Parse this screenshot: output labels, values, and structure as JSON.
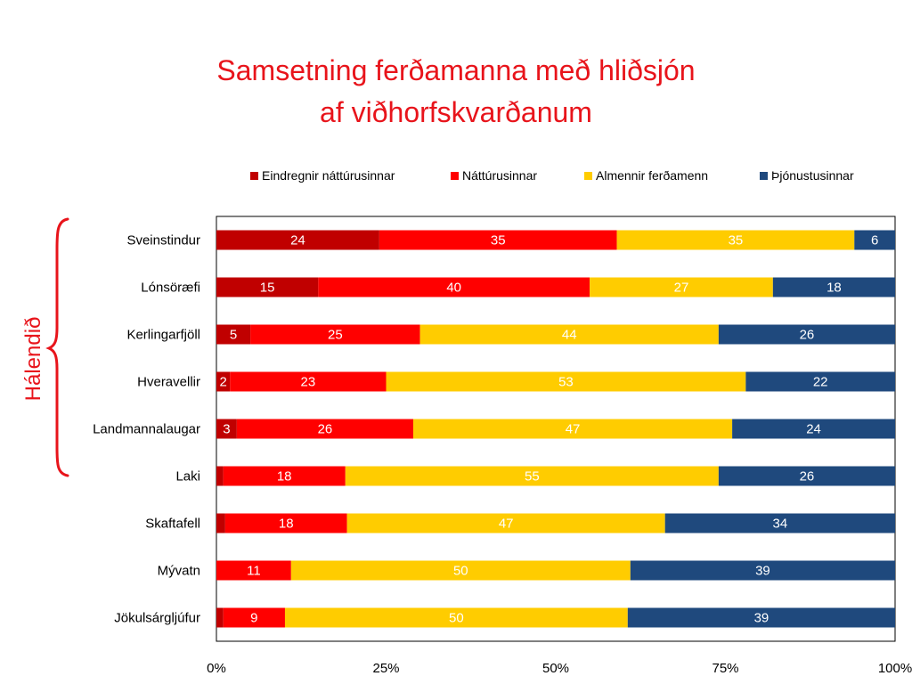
{
  "title_lines": [
    "Samsetning ferðamanna með hliðsjón",
    "af  viðhorfskvarðanum"
  ],
  "bracket_label": "Hálendið",
  "chart_data": {
    "type": "bar",
    "orientation": "horizontal",
    "stacking": "percent",
    "title": "Samsetning ferðamanna með hliðsjón af  viðhorfskvarðanum",
    "categories": [
      "Sveinstindur",
      "Lónsöræfi",
      "Kerlingarfjöll",
      "Hveravellir",
      "Landmannalaugar",
      "Laki",
      "Skaftafell",
      "Mývatn",
      "Jökulsárgljúfur"
    ],
    "series": [
      {
        "name": "Eindregnir náttúrusinnar",
        "color": "#c00000",
        "values": [
          24,
          15,
          5,
          2,
          3,
          1,
          1.3,
          0,
          1
        ],
        "labels": [
          "24",
          "15",
          "5",
          "2",
          "3",
          "",
          "",
          "",
          ""
        ]
      },
      {
        "name": "Náttúrusinnar",
        "color": "#ff0000",
        "values": [
          35,
          40,
          25,
          23,
          26,
          18,
          18,
          11,
          9
        ],
        "labels": [
          "35",
          "40",
          "25",
          "23",
          "26",
          "18",
          "18",
          "11",
          "9"
        ]
      },
      {
        "name": "Almennir ferðamenn",
        "color": "#ffcc00",
        "values": [
          35,
          27,
          44,
          53,
          47,
          55,
          47,
          50,
          50
        ],
        "labels": [
          "35",
          "27",
          "44",
          "53",
          "47",
          "55",
          "47",
          "50",
          "50"
        ]
      },
      {
        "name": "Þjónustusinnar",
        "color": "#1f497d",
        "values": [
          6,
          18,
          26,
          22,
          24,
          26,
          34,
          39,
          39
        ],
        "labels": [
          "6",
          "18",
          "26",
          "22",
          "24",
          "26",
          "34",
          "39",
          "39"
        ]
      }
    ],
    "x_ticks": [
      "0%",
      "25%",
      "50%",
      "75%",
      "100%"
    ],
    "xlim": [
      0,
      100
    ],
    "legend_position": "top",
    "grid": false
  },
  "colors": {
    "title": "#e8141b",
    "bracket": "#e8141b",
    "text": "#000000",
    "axis": "#000000"
  }
}
